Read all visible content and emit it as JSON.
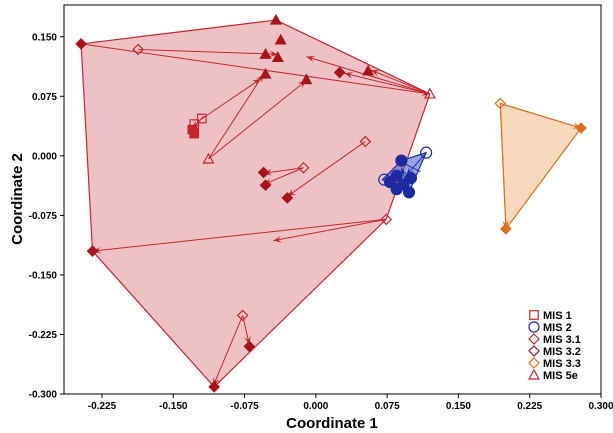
{
  "chart_data": {
    "type": "scatter",
    "xlabel": "Coordinate 1",
    "ylabel": "Coordinate 2",
    "xlim": [
      -0.265,
      0.3
    ],
    "ylim": [
      -0.3,
      0.19
    ],
    "x_ticks": [
      -0.225,
      -0.15,
      -0.075,
      0.0,
      0.075,
      0.15,
      0.225,
      0.3
    ],
    "x_tick_labels": [
      "-0.225",
      "-0.150",
      "-0.075",
      "0.000",
      "0.075",
      "0.150",
      "0.225",
      "0.300"
    ],
    "y_ticks": [
      -0.3,
      -0.225,
      -0.15,
      -0.075,
      0.0,
      0.075,
      0.15
    ],
    "y_tick_labels": [
      "-0.300",
      "-0.225",
      "-0.150",
      "-0.075",
      "0.000",
      "0.075",
      "0.150"
    ],
    "grid": false,
    "legend_position": "bottom-right",
    "colors": {
      "red": "#c1272d",
      "dark_red": "#a8141b",
      "blue": "#1f2aa0",
      "orange": "#d8701f",
      "red_fill": "rgba(205,80,85,0.35)",
      "blue_fill": "rgba(70,90,210,0.55)",
      "orange_fill": "rgba(240,170,110,0.45)"
    },
    "legend": [
      {
        "label": "MIS 1",
        "marker": "square-open",
        "color": "#c1272d"
      },
      {
        "label": "MIS 2",
        "marker": "circle-open",
        "color": "#1f2aa0"
      },
      {
        "label": "MIS 3.1",
        "marker": "diamond-open",
        "color": "#c1272d"
      },
      {
        "label": "MIS 3.2",
        "marker": "diamond-open",
        "color": "#a8141b"
      },
      {
        "label": "MIS 3.3",
        "marker": "diamond-open",
        "color": "#d8701f"
      },
      {
        "label": "MIS 5e",
        "marker": "triangle-open",
        "color": "#c1272d"
      }
    ],
    "hulls": [
      {
        "group": "red",
        "fill": "rgba(205,80,85,0.35)",
        "stroke": "#c1272d",
        "points": [
          [
            -0.042,
            0.171
          ],
          [
            0.12,
            0.078
          ],
          [
            0.074,
            -0.08
          ],
          [
            -0.107,
            -0.291
          ],
          [
            -0.235,
            -0.12
          ],
          [
            -0.247,
            0.141
          ]
        ]
      },
      {
        "group": "blue",
        "fill": "rgba(70,90,210,0.55)",
        "stroke": "#1f2aa0",
        "points": [
          [
            0.09,
            -0.006
          ],
          [
            0.116,
            0.004
          ],
          [
            0.098,
            -0.046
          ],
          [
            0.07,
            -0.03
          ]
        ]
      },
      {
        "group": "orange",
        "fill": "rgba(240,170,110,0.45)",
        "stroke": "#d8701f",
        "points": [
          [
            0.194,
            0.066
          ],
          [
            0.279,
            0.035
          ],
          [
            0.2,
            -0.092
          ]
        ]
      }
    ],
    "arrows": [
      {
        "from": [
          -0.247,
          0.141
        ],
        "to": [
          0.12,
          0.078
        ],
        "color": "#c1272d"
      },
      {
        "from": [
          -0.187,
          0.134
        ],
        "to": [
          -0.04,
          0.128
        ],
        "color": "#c1272d"
      },
      {
        "from": [
          0.12,
          0.078
        ],
        "to": [
          -0.01,
          0.125
        ],
        "color": "#c1272d"
      },
      {
        "from": [
          0.12,
          0.078
        ],
        "to": [
          0.03,
          0.104
        ],
        "color": "#c1272d"
      },
      {
        "from": [
          0.12,
          0.078
        ],
        "to": [
          0.058,
          0.108
        ],
        "color": "#c1272d"
      },
      {
        "from": [
          -0.113,
          -0.004
        ],
        "to": [
          -0.055,
          0.103
        ],
        "color": "#c1272d"
      },
      {
        "from": [
          -0.113,
          -0.004
        ],
        "to": [
          -0.01,
          0.095
        ],
        "color": "#c1272d"
      },
      {
        "from": [
          -0.122,
          0.045
        ],
        "to": [
          -0.058,
          0.097
        ],
        "color": "#c1272d"
      },
      {
        "from": [
          -0.118,
          0.05
        ],
        "to": [
          -0.13,
          0.034
        ],
        "color": "#c1272d"
      },
      {
        "from": [
          0.074,
          -0.08
        ],
        "to": [
          -0.235,
          -0.12
        ],
        "color": "#c1272d"
      },
      {
        "from": [
          0.074,
          -0.08
        ],
        "to": [
          -0.045,
          -0.107
        ],
        "color": "#c1272d"
      },
      {
        "from": [
          -0.013,
          -0.015
        ],
        "to": [
          -0.055,
          -0.036
        ],
        "color": "#c1272d"
      },
      {
        "from": [
          -0.013,
          -0.015
        ],
        "to": [
          -0.055,
          -0.022
        ],
        "color": "#c1272d"
      },
      {
        "from": [
          0.052,
          0.018
        ],
        "to": [
          -0.03,
          -0.051
        ],
        "color": "#c1272d"
      },
      {
        "from": [
          -0.077,
          -0.201
        ],
        "to": [
          -0.108,
          -0.29
        ],
        "color": "#c1272d"
      },
      {
        "from": [
          -0.077,
          -0.201
        ],
        "to": [
          -0.07,
          -0.238
        ],
        "color": "#c1272d"
      },
      {
        "from": [
          0.194,
          0.066
        ],
        "to": [
          0.279,
          0.035
        ],
        "color": "#d8701f"
      },
      {
        "from": [
          0.194,
          0.066
        ],
        "to": [
          0.2,
          -0.092
        ],
        "color": "#d8701f"
      },
      {
        "from": [
          0.11,
          -0.02
        ],
        "to": [
          0.085,
          -0.005
        ],
        "color": "#1f2aa0"
      },
      {
        "from": [
          0.116,
          0.004
        ],
        "to": [
          0.095,
          -0.025
        ],
        "color": "#1f2aa0"
      },
      {
        "from": [
          0.07,
          -0.03
        ],
        "to": [
          0.09,
          -0.04
        ],
        "color": "#1f2aa0"
      },
      {
        "from": [
          0.098,
          -0.046
        ],
        "to": [
          0.09,
          -0.015
        ],
        "color": "#1f2aa0"
      }
    ],
    "points": [
      {
        "x": -0.247,
        "y": 0.141,
        "marker": "diamond",
        "filled": true,
        "color": "#a8141b"
      },
      {
        "x": -0.187,
        "y": 0.134,
        "marker": "diamond",
        "filled": false,
        "color": "#c1272d"
      },
      {
        "x": -0.042,
        "y": 0.171,
        "marker": "triangle",
        "filled": true,
        "color": "#a8141b"
      },
      {
        "x": -0.037,
        "y": 0.146,
        "marker": "triangle",
        "filled": true,
        "color": "#a8141b"
      },
      {
        "x": -0.053,
        "y": 0.128,
        "marker": "triangle",
        "filled": true,
        "color": "#a8141b"
      },
      {
        "x": -0.04,
        "y": 0.124,
        "marker": "triangle",
        "filled": true,
        "color": "#a8141b"
      },
      {
        "x": 0.025,
        "y": 0.105,
        "marker": "diamond",
        "filled": true,
        "color": "#a8141b"
      },
      {
        "x": 0.055,
        "y": 0.107,
        "marker": "triangle",
        "filled": true,
        "color": "#a8141b"
      },
      {
        "x": 0.12,
        "y": 0.078,
        "marker": "triangle",
        "filled": false,
        "color": "#c1272d"
      },
      {
        "x": -0.053,
        "y": 0.103,
        "marker": "triangle",
        "filled": true,
        "color": "#a8141b"
      },
      {
        "x": -0.01,
        "y": 0.096,
        "marker": "triangle",
        "filled": true,
        "color": "#a8141b"
      },
      {
        "x": -0.113,
        "y": -0.004,
        "marker": "triangle",
        "filled": false,
        "color": "#c1272d"
      },
      {
        "x": -0.12,
        "y": 0.047,
        "marker": "square",
        "filled": false,
        "color": "#c1272d"
      },
      {
        "x": -0.128,
        "y": 0.04,
        "marker": "square",
        "filled": false,
        "color": "#c1272d"
      },
      {
        "x": -0.13,
        "y": 0.033,
        "marker": "square",
        "filled": true,
        "color": "#c1272d"
      },
      {
        "x": -0.128,
        "y": 0.028,
        "marker": "square",
        "filled": true,
        "color": "#c1272d"
      },
      {
        "x": -0.055,
        "y": -0.021,
        "marker": "diamond",
        "filled": true,
        "color": "#a8141b"
      },
      {
        "x": -0.053,
        "y": -0.037,
        "marker": "diamond",
        "filled": true,
        "color": "#a8141b"
      },
      {
        "x": -0.013,
        "y": -0.015,
        "marker": "diamond",
        "filled": false,
        "color": "#c1272d"
      },
      {
        "x": -0.03,
        "y": -0.053,
        "marker": "diamond",
        "filled": true,
        "color": "#a8141b"
      },
      {
        "x": 0.052,
        "y": 0.018,
        "marker": "diamond",
        "filled": false,
        "color": "#c1272d"
      },
      {
        "x": 0.074,
        "y": -0.08,
        "marker": "diamond",
        "filled": false,
        "color": "#c1272d"
      },
      {
        "x": -0.235,
        "y": -0.12,
        "marker": "diamond",
        "filled": true,
        "color": "#a8141b"
      },
      {
        "x": -0.077,
        "y": -0.201,
        "marker": "diamond",
        "filled": false,
        "color": "#c1272d"
      },
      {
        "x": -0.07,
        "y": -0.24,
        "marker": "diamond",
        "filled": true,
        "color": "#a8141b"
      },
      {
        "x": -0.107,
        "y": -0.291,
        "marker": "diamond",
        "filled": true,
        "color": "#a8141b"
      },
      {
        "x": 0.116,
        "y": 0.004,
        "marker": "circle",
        "filled": false,
        "color": "#1f2aa0"
      },
      {
        "x": 0.09,
        "y": -0.006,
        "marker": "circle",
        "filled": true,
        "color": "#1f2aa0"
      },
      {
        "x": 0.085,
        "y": -0.025,
        "marker": "circle",
        "filled": true,
        "color": "#1f2aa0"
      },
      {
        "x": 0.078,
        "y": -0.033,
        "marker": "circle",
        "filled": true,
        "color": "#1f2aa0"
      },
      {
        "x": 0.092,
        "y": -0.036,
        "marker": "circle",
        "filled": true,
        "color": "#1f2aa0"
      },
      {
        "x": 0.098,
        "y": -0.046,
        "marker": "circle",
        "filled": true,
        "color": "#1f2aa0"
      },
      {
        "x": 0.085,
        "y": -0.042,
        "marker": "circle",
        "filled": true,
        "color": "#1f2aa0"
      },
      {
        "x": 0.1,
        "y": -0.028,
        "marker": "circle",
        "filled": true,
        "color": "#1f2aa0"
      },
      {
        "x": 0.072,
        "y": -0.03,
        "marker": "circle",
        "filled": false,
        "color": "#1f2aa0"
      },
      {
        "x": 0.194,
        "y": 0.066,
        "marker": "diamond",
        "filled": false,
        "color": "#d8701f"
      },
      {
        "x": 0.279,
        "y": 0.035,
        "marker": "diamond",
        "filled": true,
        "color": "#d8701f"
      },
      {
        "x": 0.2,
        "y": -0.092,
        "marker": "diamond",
        "filled": true,
        "color": "#d8701f"
      }
    ]
  }
}
